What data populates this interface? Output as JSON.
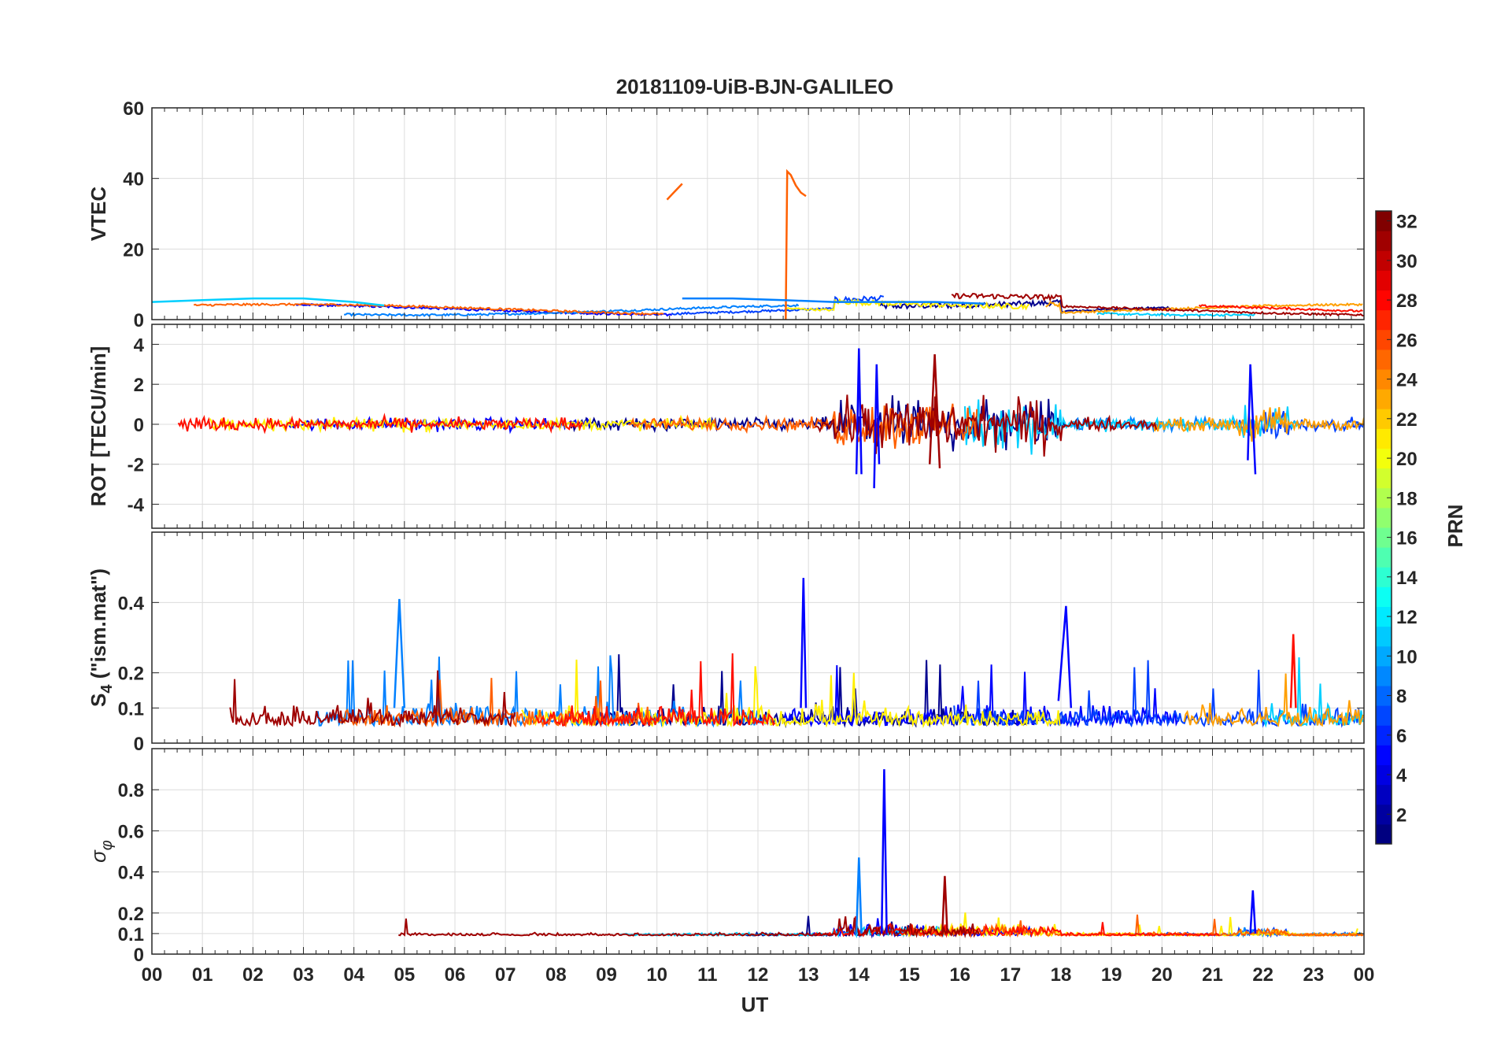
{
  "title": "20181109-UiB-BJN-GALILEO",
  "x_axis": {
    "label": "UT",
    "ticks": [
      "00",
      "01",
      "02",
      "03",
      "04",
      "05",
      "06",
      "07",
      "08",
      "09",
      "10",
      "11",
      "12",
      "13",
      "14",
      "15",
      "16",
      "17",
      "18",
      "19",
      "20",
      "21",
      "22",
      "23",
      "00"
    ]
  },
  "colorbar": {
    "label": "PRN",
    "min": 1,
    "max": 32,
    "ticks": [
      "2",
      "4",
      "6",
      "8",
      "10",
      "12",
      "14",
      "16",
      "18",
      "20",
      "22",
      "24",
      "26",
      "28",
      "30",
      "32"
    ],
    "colormap": "jet"
  },
  "series_colors": {
    "prn2": "#00008f",
    "prn4": "#0000ff",
    "prn6": "#0040ff",
    "prn8": "#0080ff",
    "prn11": "#00cfff",
    "prn19": "#ffef00",
    "prn23": "#ff9f00",
    "prn25": "#ff6000",
    "prn28": "#ff1000",
    "prn31": "#9f0000"
  },
  "chart_data": [
    {
      "type": "line",
      "panel": "vtec",
      "ylabel": "VTEC",
      "ylim": [
        0,
        60
      ],
      "yticks": [
        "0",
        "20",
        "40",
        "60"
      ],
      "xlim": [
        0,
        24
      ],
      "series": [
        {
          "name": "PRN 25 jump segment 1",
          "color_key": "prn25",
          "x": [
            10.2,
            10.3,
            10.4,
            10.5
          ],
          "y": [
            34,
            35.5,
            37,
            38.5
          ]
        },
        {
          "name": "PRN 25 jump segment 2",
          "color_key": "prn25",
          "x": [
            12.55,
            12.58,
            12.65,
            12.75,
            12.85,
            12.95
          ],
          "y": [
            0,
            42,
            41,
            38,
            36,
            35
          ]
        },
        {
          "name": "PRN 11 early arc",
          "color_key": "prn11",
          "x": [
            0,
            1,
            2,
            3,
            4,
            4.6
          ],
          "y": [
            5,
            5.5,
            6,
            6,
            5,
            4
          ]
        },
        {
          "name": "PRN 8 late arc",
          "color_key": "prn8",
          "x": [
            10.5,
            11.5,
            12.5,
            13.5,
            14.5,
            15.5,
            16.5
          ],
          "y": [
            6,
            6,
            5.5,
            5,
            5,
            5,
            4.5
          ]
        }
      ]
    },
    {
      "type": "line",
      "panel": "rot",
      "ylabel": "ROT [TECU/min]",
      "ylim": [
        -5.2,
        5
      ],
      "yticks": [
        "-4",
        "-2",
        "0",
        "2",
        "4"
      ],
      "xlim": [
        0,
        24
      ],
      "series": [
        {
          "name": "PRN 4 spike 14 UT",
          "color_key": "prn4",
          "x": [
            13.95,
            14.0,
            14.05
          ],
          "y": [
            -2.5,
            3.8,
            -2.5
          ]
        },
        {
          "name": "PRN 4 spike 14.4 UT",
          "color_key": "prn4",
          "x": [
            14.3,
            14.35,
            14.4
          ],
          "y": [
            -3.2,
            3.0,
            -2.0
          ]
        },
        {
          "name": "PRN 31 spike 15.5 UT",
          "color_key": "prn31",
          "x": [
            15.4,
            15.5,
            15.6
          ],
          "y": [
            -2.0,
            3.5,
            -2.2
          ]
        },
        {
          "name": "PRN 4 spike 21.8 UT",
          "color_key": "prn4",
          "x": [
            21.7,
            21.75,
            21.85
          ],
          "y": [
            -1.8,
            3.0,
            -2.5
          ]
        }
      ]
    },
    {
      "type": "line",
      "panel": "s4",
      "ylabel": "S4 (\"ism.mat\")",
      "ylim": [
        0,
        0.6
      ],
      "yticks": [
        "0",
        "0.1",
        "0.2",
        "0.4"
      ],
      "xlim": [
        0,
        24
      ],
      "series": [
        {
          "name": "PRN 8 peak 05 UT",
          "color_key": "prn8",
          "x": [
            4.8,
            4.9,
            5.0
          ],
          "y": [
            0.1,
            0.41,
            0.1
          ]
        },
        {
          "name": "PRN 4 peak 13 UT",
          "color_key": "prn4",
          "x": [
            12.85,
            12.9,
            12.95
          ],
          "y": [
            0.1,
            0.47,
            0.1
          ]
        },
        {
          "name": "PRN 4 peak 18 UT",
          "color_key": "prn4",
          "x": [
            17.95,
            18.1,
            18.2
          ],
          "y": [
            0.12,
            0.39,
            0.1
          ]
        },
        {
          "name": "PRN 28 peak 22.6 UT",
          "color_key": "prn28",
          "x": [
            22.55,
            22.6,
            22.65
          ],
          "y": [
            0.1,
            0.31,
            0.1
          ]
        }
      ]
    },
    {
      "type": "line",
      "panel": "sigma_phi",
      "ylabel": "σφ",
      "ylim": [
        0,
        1
      ],
      "yticks": [
        "0",
        "0.1",
        "0.2",
        "0.4",
        "0.6",
        "0.8"
      ],
      "xlim": [
        0,
        24
      ],
      "series": [
        {
          "name": "PRN 4 peak 14.5 UT",
          "color_key": "prn4",
          "x": [
            14.45,
            14.5,
            14.55
          ],
          "y": [
            0.1,
            0.9,
            0.1
          ]
        },
        {
          "name": "PRN 8 peak 14 UT",
          "color_key": "prn8",
          "x": [
            13.95,
            14.0,
            14.05
          ],
          "y": [
            0.1,
            0.47,
            0.1
          ]
        },
        {
          "name": "PRN 31 peak 15.7 UT",
          "color_key": "prn31",
          "x": [
            15.65,
            15.7,
            15.75
          ],
          "y": [
            0.1,
            0.38,
            0.1
          ]
        },
        {
          "name": "PRN 4 peak 21.8 UT",
          "color_key": "prn4",
          "x": [
            21.75,
            21.8,
            21.85
          ],
          "y": [
            0.1,
            0.31,
            0.1
          ]
        }
      ]
    }
  ]
}
